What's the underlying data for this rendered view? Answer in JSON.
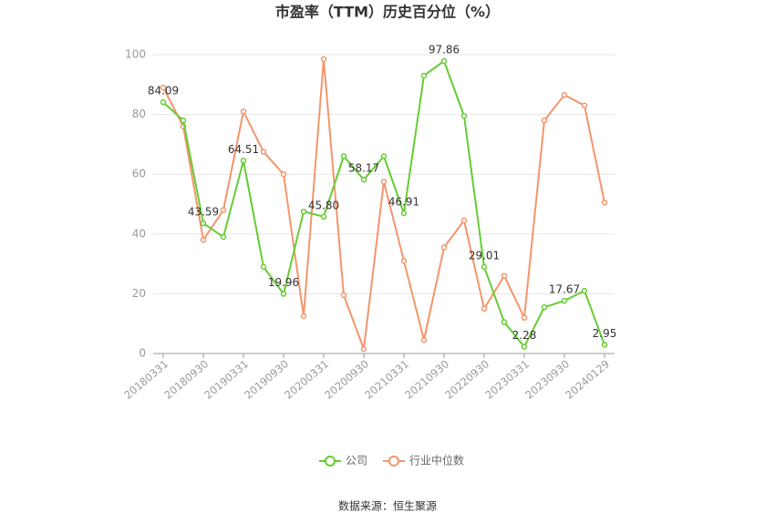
{
  "chart_data": {
    "type": "line",
    "title": "市盈率（TTM）历史百分位（%）",
    "categories": [
      "20180331",
      null,
      "20180930",
      null,
      "20190331",
      null,
      "20190930",
      null,
      "20200331",
      null,
      "20200930",
      null,
      "20210331",
      null,
      "20210930",
      null,
      "20220930",
      null,
      "20230331",
      null,
      "20230930",
      null,
      "20240129"
    ],
    "series": [
      {
        "name": "公司",
        "color": "#66cc33",
        "values": [
          84.09,
          78,
          43.59,
          39,
          64.51,
          29,
          19.96,
          47.5,
          45.8,
          66,
          58.17,
          66,
          46.91,
          93,
          97.86,
          79.5,
          29.01,
          10.5,
          2.28,
          15.5,
          17.67,
          21,
          2.95
        ],
        "value_labels": [
          "84.09",
          null,
          "43.59",
          null,
          "64.51",
          null,
          "19.96",
          null,
          "45.80",
          null,
          "58.17",
          null,
          "46.91",
          null,
          "97.86",
          null,
          "29.01",
          null,
          "2.28",
          null,
          "17.67",
          null,
          "2.95"
        ]
      },
      {
        "name": "行业中位数",
        "color": "#f4956b",
        "values": [
          89,
          76,
          38,
          48,
          81,
          67.5,
          60,
          12.5,
          98.5,
          19.5,
          1.5,
          57.5,
          31,
          4.5,
          35.5,
          44.5,
          15,
          26,
          12,
          78,
          86.5,
          83,
          50.5
        ]
      }
    ],
    "ylim": [
      0,
      100
    ],
    "yticks": [
      0,
      20,
      40,
      60,
      80,
      100
    ],
    "grid": true,
    "legend": "bottom",
    "source": "数据来源：恒生聚源"
  }
}
